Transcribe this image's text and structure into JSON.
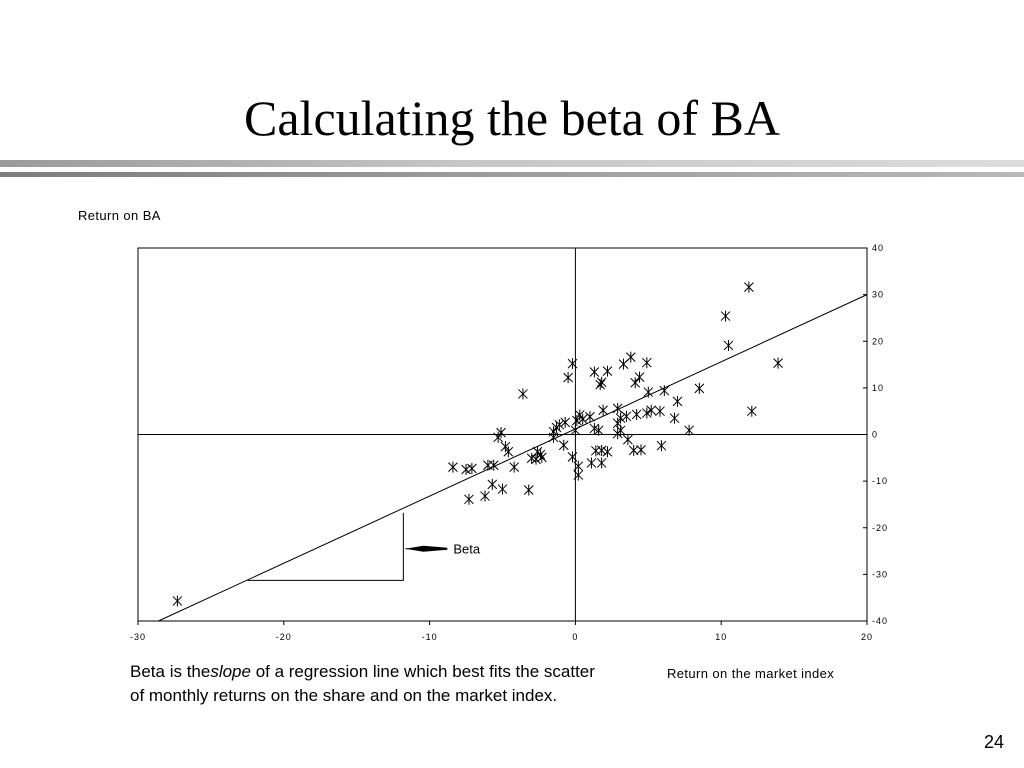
{
  "slide": {
    "title": "Calculating the beta of BA",
    "page_number": "24"
  },
  "caption": {
    "before": "Beta is the",
    "emphasis": "slope",
    "after": " of a regression line which best fits the scatter of monthly returns on the share and on the market index."
  },
  "chart_data": {
    "type": "scatter",
    "xlabel": "Return on the market index",
    "ylabel": "Return on BA",
    "xlim": [
      -30,
      20
    ],
    "ylim": [
      -40,
      40
    ],
    "x_ticks": [
      "-30",
      "-20",
      "-10",
      "0",
      "10",
      "20"
    ],
    "y_ticks": [
      "40",
      "30",
      "20",
      "10",
      "0",
      "-10",
      "-20",
      "-30",
      "-40"
    ],
    "marker": "asterisk",
    "grid": false,
    "reference_lines": {
      "x": 0,
      "y": 0
    },
    "regression_line": {
      "x": [
        -28.6,
        20
      ],
      "y": [
        -40,
        30
      ]
    },
    "slope_triangle": {
      "x_left": -22.5,
      "x_right": -11.8,
      "y_bottom": -31.3,
      "y_top": -16.8
    },
    "annotation": {
      "text": "Beta",
      "points_to": {
        "x": -11.8,
        "y": -24.5
      }
    },
    "points": [
      {
        "x": -27.3,
        "y": -35.7
      },
      {
        "x": -3.6,
        "y": 8.7
      },
      {
        "x": -0.5,
        "y": 12.2
      },
      {
        "x": -0.2,
        "y": 15.2
      },
      {
        "x": 1.3,
        "y": 13.4
      },
      {
        "x": 2.2,
        "y": 13.6
      },
      {
        "x": 3.3,
        "y": 15.1
      },
      {
        "x": 3.8,
        "y": 16.6
      },
      {
        "x": 4.9,
        "y": 15.4
      },
      {
        "x": 1.7,
        "y": 10.7
      },
      {
        "x": 1.8,
        "y": 11.2
      },
      {
        "x": 4.1,
        "y": 11.1
      },
      {
        "x": 4.4,
        "y": 12.3
      },
      {
        "x": 5.0,
        "y": 9.1
      },
      {
        "x": 6.1,
        "y": 9.4
      },
      {
        "x": 8.5,
        "y": 9.9
      },
      {
        "x": 7.0,
        "y": 7.1
      },
      {
        "x": 10.3,
        "y": 25.4
      },
      {
        "x": 10.5,
        "y": 19.1
      },
      {
        "x": 11.9,
        "y": 31.6
      },
      {
        "x": 13.9,
        "y": 15.3
      },
      {
        "x": 12.1,
        "y": 5.0
      },
      {
        "x": 7.8,
        "y": 0.9
      },
      {
        "x": 6.8,
        "y": 3.5
      },
      {
        "x": 5.8,
        "y": 5.0
      },
      {
        "x": 5.2,
        "y": 5.2
      },
      {
        "x": 4.9,
        "y": 4.6
      },
      {
        "x": 4.2,
        "y": 4.3
      },
      {
        "x": 3.5,
        "y": 3.9
      },
      {
        "x": 3.1,
        "y": 3.5
      },
      {
        "x": 2.9,
        "y": 5.6
      },
      {
        "x": 1.9,
        "y": 5.2
      },
      {
        "x": 1.0,
        "y": 3.8
      },
      {
        "x": 0.3,
        "y": 4.2
      },
      {
        "x": 0.1,
        "y": 3.0
      },
      {
        "x": 0.5,
        "y": 3.3
      },
      {
        "x": -0.7,
        "y": 2.6
      },
      {
        "x": -1.1,
        "y": 2.1
      },
      {
        "x": -1.3,
        "y": 1.5
      },
      {
        "x": -1.5,
        "y": 0.6
      },
      {
        "x": 0.0,
        "y": 0.9
      },
      {
        "x": 1.3,
        "y": 1.3
      },
      {
        "x": 1.6,
        "y": 0.9
      },
      {
        "x": 2.9,
        "y": 2.4
      },
      {
        "x": 3.1,
        "y": 0.9
      },
      {
        "x": 3.6,
        "y": -1.1
      },
      {
        "x": 2.9,
        "y": 0.2
      },
      {
        "x": -1.5,
        "y": -0.6
      },
      {
        "x": -0.8,
        "y": -2.3
      },
      {
        "x": -2.4,
        "y": -4.3
      },
      {
        "x": -2.6,
        "y": -3.7
      },
      {
        "x": -3.0,
        "y": -5.1
      },
      {
        "x": -2.7,
        "y": -5.3
      },
      {
        "x": -2.3,
        "y": -4.9
      },
      {
        "x": -4.8,
        "y": -2.6
      },
      {
        "x": -4.6,
        "y": -3.7
      },
      {
        "x": -5.1,
        "y": 0.4
      },
      {
        "x": -5.3,
        "y": -0.6
      },
      {
        "x": -0.2,
        "y": -4.8
      },
      {
        "x": 0.2,
        "y": -6.8
      },
      {
        "x": 0.2,
        "y": -8.7
      },
      {
        "x": 1.1,
        "y": -6.1
      },
      {
        "x": 1.8,
        "y": -6.1
      },
      {
        "x": 1.8,
        "y": -3.4
      },
      {
        "x": 1.4,
        "y": -3.5
      },
      {
        "x": 2.2,
        "y": -3.7
      },
      {
        "x": 4.0,
        "y": -3.4
      },
      {
        "x": 4.5,
        "y": -3.3
      },
      {
        "x": 5.9,
        "y": -2.4
      },
      {
        "x": -6.0,
        "y": -6.6
      },
      {
        "x": -5.6,
        "y": -6.6
      },
      {
        "x": -4.2,
        "y": -7.0
      },
      {
        "x": -8.4,
        "y": -7.0
      },
      {
        "x": -7.5,
        "y": -7.5
      },
      {
        "x": -7.1,
        "y": -7.3
      },
      {
        "x": -5.7,
        "y": -10.7
      },
      {
        "x": -5.0,
        "y": -11.7
      },
      {
        "x": -3.2,
        "y": -11.9
      },
      {
        "x": -6.2,
        "y": -13.2
      },
      {
        "x": -7.3,
        "y": -13.9
      }
    ]
  }
}
